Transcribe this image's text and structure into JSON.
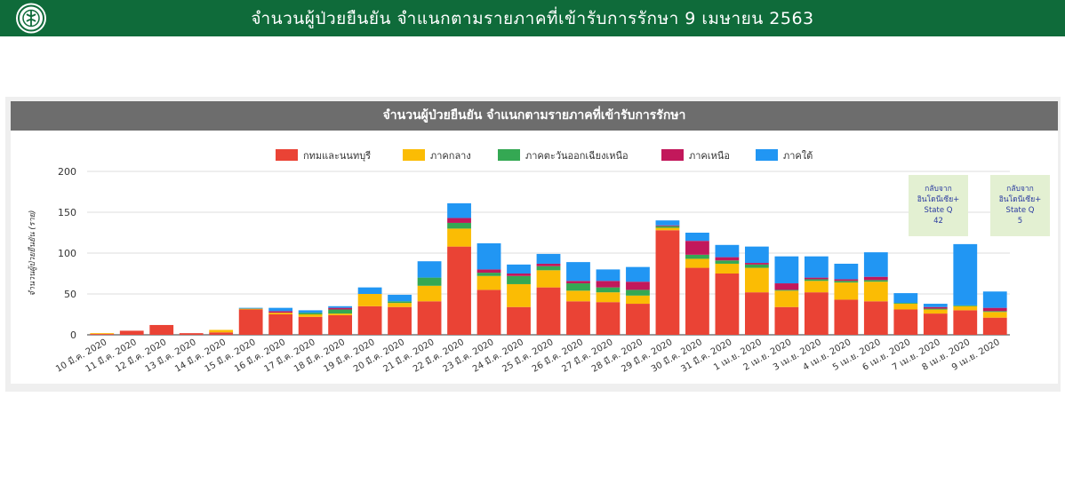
{
  "header": {
    "title": "จำนวนผู้ป่วยยืนยัน จำแนกตามรายภาคที่เข้ารับการรักษา 9 เมษายน 2563"
  },
  "colors": {
    "header_bg": "#0f6b3a",
    "panel_header_bg": "#6d6d6d",
    "note_bg": "#e3f0d2"
  },
  "notes": [
    {
      "lines": [
        "กลับจาก",
        "อินโดนีเซีย+",
        "State Q",
        "42"
      ]
    },
    {
      "lines": [
        "กลับจาก",
        "อินโดนีเซีย+",
        "State Q",
        "5"
      ]
    }
  ],
  "chart_data": {
    "type": "bar",
    "stacked": true,
    "title": "จำนวนผู้ป่วยยืนยัน จำแนกตามรายภาคที่เข้ารับการรักษา",
    "ylabel": "จำนวนผู้ป่วยยืนยัน (ราย)",
    "xlabel": "",
    "ylim": [
      0,
      200
    ],
    "yticks": [
      0,
      50,
      100,
      150,
      200
    ],
    "grid": true,
    "legend_position": "top",
    "categories": [
      "10 มี.ค. 2020",
      "11 มี.ค. 2020",
      "12 มี.ค. 2020",
      "13 มี.ค. 2020",
      "14 มี.ค. 2020",
      "15 มี.ค. 2020",
      "16 มี.ค. 2020",
      "17 มี.ค. 2020",
      "18 มี.ค. 2020",
      "19 มี.ค. 2020",
      "20 มี.ค. 2020",
      "21 มี.ค. 2020",
      "22 มี.ค. 2020",
      "23 มี.ค. 2020",
      "24 มี.ค. 2020",
      "25 มี.ค. 2020",
      "26 มี.ค. 2020",
      "27 มี.ค. 2020",
      "28 มี.ค. 2020",
      "29 มี.ค. 2020",
      "30 มี.ค. 2020",
      "31 มี.ค. 2020",
      "1 เม.ย. 2020",
      "2 เม.ย. 2020",
      "3 เม.ย. 2020",
      "4 เม.ย. 2020",
      "5 เม.ย. 2020",
      "6 เม.ย. 2020",
      "7 เม.ย. 2020",
      "8 เม.ย. 2020",
      "9 เม.ย. 2020"
    ],
    "series": [
      {
        "name": "กทมและนนทบุรี",
        "color": "#ea4335",
        "values": [
          1,
          5,
          12,
          2,
          3,
          31,
          25,
          22,
          24,
          35,
          34,
          41,
          108,
          55,
          34,
          58,
          41,
          40,
          38,
          128,
          82,
          75,
          52,
          34,
          52,
          43,
          41,
          31,
          26,
          30,
          21
        ]
      },
      {
        "name": "ภาคกลาง",
        "color": "#fbbc04",
        "values": [
          1,
          0,
          0,
          0,
          3,
          1,
          2,
          3,
          2,
          15,
          5,
          19,
          22,
          17,
          28,
          21,
          13,
          12,
          10,
          3,
          11,
          12,
          30,
          20,
          14,
          21,
          24,
          7,
          5,
          5,
          7
        ]
      },
      {
        "name": "ภาคตะวันออกเฉียงเหนือ",
        "color": "#34a853",
        "values": [
          0,
          0,
          0,
          0,
          0,
          0,
          0,
          2,
          5,
          0,
          2,
          10,
          7,
          4,
          10,
          5,
          9,
          6,
          7,
          2,
          5,
          4,
          4,
          1,
          2,
          2,
          2,
          1,
          1,
          1,
          1
        ]
      },
      {
        "name": "ภาคเหนือ",
        "color": "#c2185b",
        "values": [
          0,
          0,
          0,
          0,
          0,
          0,
          2,
          0,
          2,
          0,
          0,
          0,
          6,
          4,
          3,
          3,
          3,
          8,
          10,
          1,
          17,
          4,
          2,
          8,
          2,
          2,
          4,
          0,
          2,
          0,
          4
        ]
      },
      {
        "name": "ภาคใต้",
        "color": "#2196f3",
        "values": [
          0,
          0,
          0,
          0,
          0,
          1,
          4,
          3,
          2,
          8,
          8,
          20,
          18,
          32,
          11,
          12,
          23,
          14,
          18,
          6,
          10,
          15,
          20,
          33,
          26,
          19,
          30,
          12,
          4,
          75,
          20
        ]
      }
    ]
  }
}
